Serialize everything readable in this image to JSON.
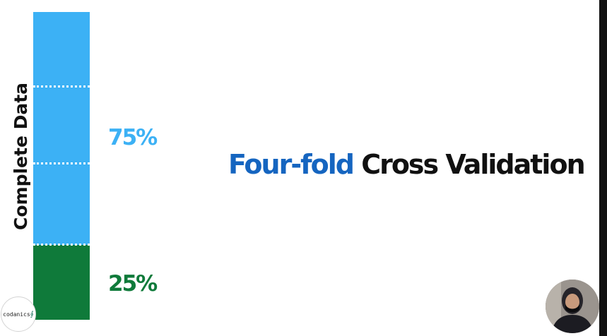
{
  "diagram": {
    "axis_label": "Complete Data",
    "train_percent": "75%",
    "test_percent": "25%",
    "title_highlight": "Four-fold",
    "title_rest": " Cross Validation",
    "colors": {
      "train": "#3cb1f5",
      "test": "#0f7a3a",
      "highlight": "#1565c0",
      "title": "#111111"
    }
  },
  "branding": {
    "logo_text": "codanics",
    "logo_mark": "∮"
  },
  "presenter": {
    "icon": "presenter-webcam-icon"
  }
}
